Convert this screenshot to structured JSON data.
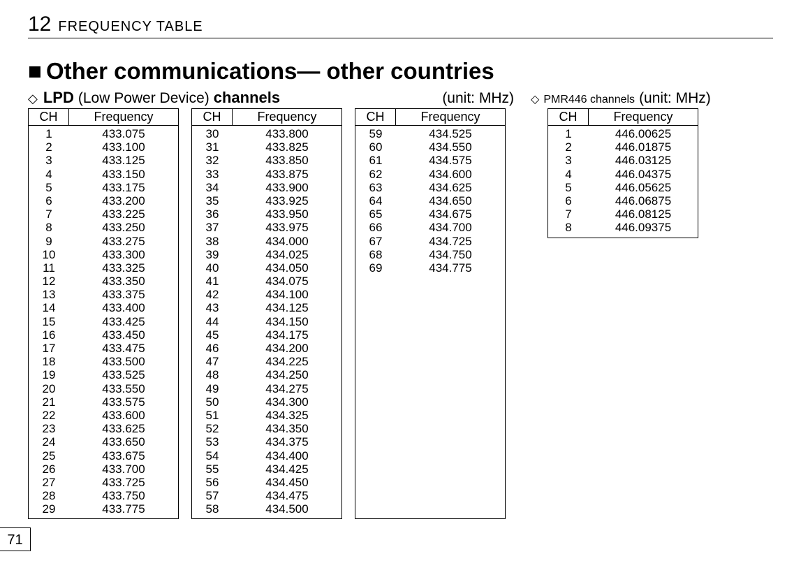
{
  "chapter_number": "12",
  "chapter_title": "FREQUENCY TABLE",
  "page_number": "71",
  "section_title": "Other communications— other countries",
  "lpd": {
    "diamond": "◇",
    "label_bold1": "LPD",
    "label_plain": "(Low Power Device)",
    "label_bold2": "channels",
    "unit": "(unit: MHz)",
    "col_headers": {
      "ch": "CH",
      "freq": "Frequency"
    },
    "col1": [
      {
        "ch": "1",
        "f": "433.075"
      },
      {
        "ch": "2",
        "f": "433.100"
      },
      {
        "ch": "3",
        "f": "433.125"
      },
      {
        "ch": "4",
        "f": "433.150"
      },
      {
        "ch": "5",
        "f": "433.175"
      },
      {
        "ch": "6",
        "f": "433.200"
      },
      {
        "ch": "7",
        "f": "433.225"
      },
      {
        "ch": "8",
        "f": "433.250"
      },
      {
        "ch": "9",
        "f": "433.275"
      },
      {
        "ch": "10",
        "f": "433.300"
      },
      {
        "ch": "11",
        "f": "433.325"
      },
      {
        "ch": "12",
        "f": "433.350"
      },
      {
        "ch": "13",
        "f": "433.375"
      },
      {
        "ch": "14",
        "f": "433.400"
      },
      {
        "ch": "15",
        "f": "433.425"
      },
      {
        "ch": "16",
        "f": "433.450"
      },
      {
        "ch": "17",
        "f": "433.475"
      },
      {
        "ch": "18",
        "f": "433.500"
      },
      {
        "ch": "19",
        "f": "433.525"
      },
      {
        "ch": "20",
        "f": "433.550"
      },
      {
        "ch": "21",
        "f": "433.575"
      },
      {
        "ch": "22",
        "f": "433.600"
      },
      {
        "ch": "23",
        "f": "433.625"
      },
      {
        "ch": "24",
        "f": "433.650"
      },
      {
        "ch": "25",
        "f": "433.675"
      },
      {
        "ch": "26",
        "f": "433.700"
      },
      {
        "ch": "27",
        "f": "433.725"
      },
      {
        "ch": "28",
        "f": "433.750"
      },
      {
        "ch": "29",
        "f": "433.775"
      }
    ],
    "col2": [
      {
        "ch": "30",
        "f": "433.800"
      },
      {
        "ch": "31",
        "f": "433.825"
      },
      {
        "ch": "32",
        "f": "433.850"
      },
      {
        "ch": "33",
        "f": "433.875"
      },
      {
        "ch": "34",
        "f": "433.900"
      },
      {
        "ch": "35",
        "f": "433.925"
      },
      {
        "ch": "36",
        "f": "433.950"
      },
      {
        "ch": "37",
        "f": "433.975"
      },
      {
        "ch": "38",
        "f": "434.000"
      },
      {
        "ch": "39",
        "f": "434.025"
      },
      {
        "ch": "40",
        "f": "434.050"
      },
      {
        "ch": "41",
        "f": "434.075"
      },
      {
        "ch": "42",
        "f": "434.100"
      },
      {
        "ch": "43",
        "f": "434.125"
      },
      {
        "ch": "44",
        "f": "434.150"
      },
      {
        "ch": "45",
        "f": "434.175"
      },
      {
        "ch": "46",
        "f": "434.200"
      },
      {
        "ch": "47",
        "f": "434.225"
      },
      {
        "ch": "48",
        "f": "434.250"
      },
      {
        "ch": "49",
        "f": "434.275"
      },
      {
        "ch": "50",
        "f": "434.300"
      },
      {
        "ch": "51",
        "f": "434.325"
      },
      {
        "ch": "52",
        "f": "434.350"
      },
      {
        "ch": "53",
        "f": "434.375"
      },
      {
        "ch": "54",
        "f": "434.400"
      },
      {
        "ch": "55",
        "f": "434.425"
      },
      {
        "ch": "56",
        "f": "434.450"
      },
      {
        "ch": "57",
        "f": "434.475"
      },
      {
        "ch": "58",
        "f": "434.500"
      }
    ],
    "col3": [
      {
        "ch": "59",
        "f": "434.525"
      },
      {
        "ch": "60",
        "f": "434.550"
      },
      {
        "ch": "61",
        "f": "434.575"
      },
      {
        "ch": "62",
        "f": "434.600"
      },
      {
        "ch": "63",
        "f": "434.625"
      },
      {
        "ch": "64",
        "f": "434.650"
      },
      {
        "ch": "65",
        "f": "434.675"
      },
      {
        "ch": "66",
        "f": "434.700"
      },
      {
        "ch": "67",
        "f": "434.725"
      },
      {
        "ch": "68",
        "f": "434.750"
      },
      {
        "ch": "69",
        "f": "434.775"
      }
    ]
  },
  "pmr": {
    "diamond": "◇",
    "label_bold": "PMR446 channels",
    "unit": "(unit: MHz)",
    "col_headers": {
      "ch": "CH",
      "freq": "Frequency"
    },
    "rows": [
      {
        "ch": "1",
        "f": "446.00625"
      },
      {
        "ch": "2",
        "f": "446.01875"
      },
      {
        "ch": "3",
        "f": "446.03125"
      },
      {
        "ch": "4",
        "f": "446.04375"
      },
      {
        "ch": "5",
        "f": "446.05625"
      },
      {
        "ch": "6",
        "f": "446.06875"
      },
      {
        "ch": "7",
        "f": "446.08125"
      },
      {
        "ch": "8",
        "f": "446.09375"
      }
    ]
  }
}
